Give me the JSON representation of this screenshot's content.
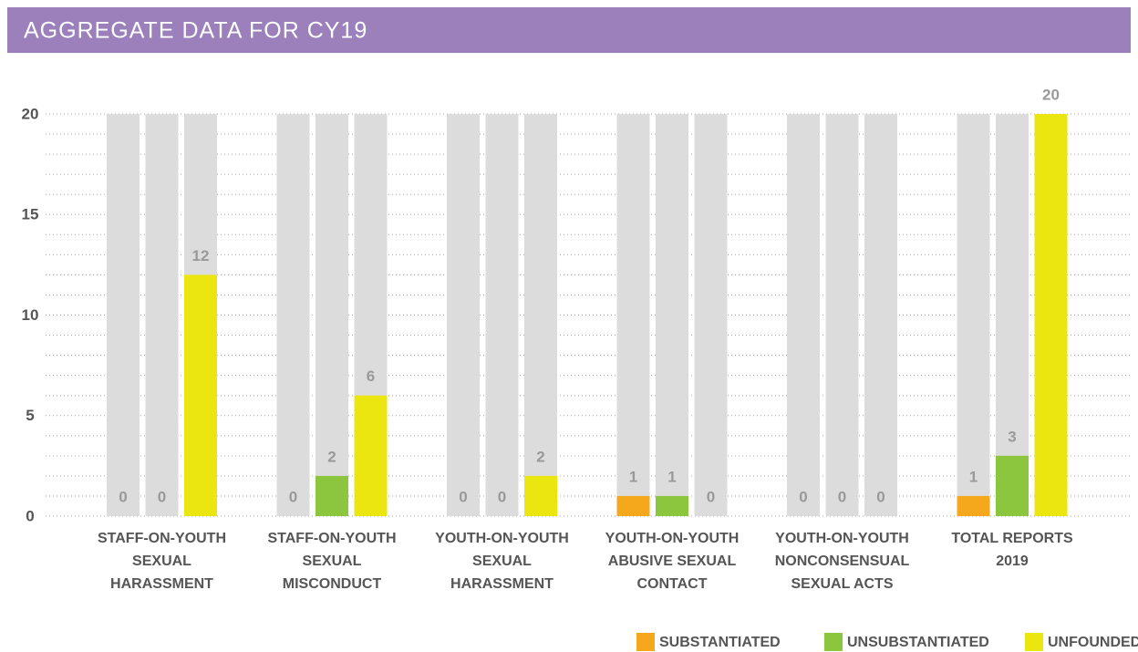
{
  "chart_data": {
    "type": "bar",
    "title": "AGGREGATE DATA FOR CY19",
    "categories": [
      [
        "STAFF-ON-YOUTH",
        "SEXUAL",
        "HARASSMENT"
      ],
      [
        "STAFF-ON-YOUTH",
        "SEXUAL",
        "MISCONDUCT"
      ],
      [
        "YOUTH-ON-YOUTH",
        "SEXUAL",
        "HARASSMENT"
      ],
      [
        "YOUTH-ON-YOUTH",
        "ABUSIVE SEXUAL",
        "CONTACT"
      ],
      [
        "YOUTH-ON-YOUTH",
        "NONCONSENSUAL",
        "SEXUAL ACTS"
      ],
      [
        "TOTAL REPORTS",
        "2019"
      ]
    ],
    "series": [
      {
        "name": "SUBSTANTIATED",
        "color": "#f6a81c",
        "values": [
          0,
          0,
          0,
          1,
          0,
          1
        ]
      },
      {
        "name": "UNSUBSTANTIATED",
        "color": "#8cc63f",
        "values": [
          0,
          2,
          0,
          1,
          0,
          3
        ]
      },
      {
        "name": "UNFOUNDED",
        "color": "#ebe510",
        "values": [
          12,
          6,
          2,
          0,
          0,
          20
        ]
      }
    ],
    "ylim": [
      0,
      20
    ],
    "yticks": [
      0,
      5,
      10,
      15,
      20
    ],
    "minor_yticks": [
      0,
      1,
      2,
      3,
      4,
      5,
      6,
      7,
      8,
      9,
      10,
      11,
      12,
      13,
      14,
      15,
      16,
      17,
      18,
      19,
      20
    ],
    "grid": true,
    "background_bars": true,
    "legend": "bottom-right"
  }
}
